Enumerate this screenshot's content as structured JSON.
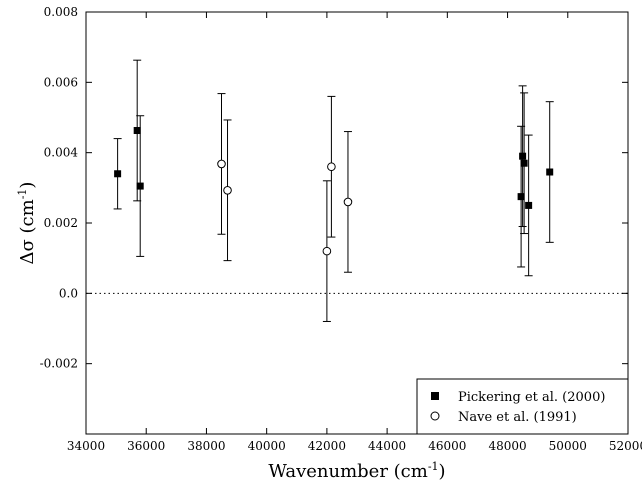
{
  "chart_data": {
    "type": "scatter",
    "xlabel": "Wavenumber (cm",
    "xlabel_sup": "-1",
    "xlabel_close": ")",
    "ylabel": "Δσ (cm",
    "ylabel_sup": "-1",
    "ylabel_close": ")",
    "xlim": [
      34000,
      52000
    ],
    "ylim": [
      -0.004,
      0.008
    ],
    "xticks": [
      34000,
      36000,
      38000,
      40000,
      42000,
      44000,
      46000,
      48000,
      50000,
      52000
    ],
    "xtick_labels": [
      "34000",
      "36000",
      "38000",
      "40000",
      "42000",
      "44000",
      "46000",
      "48000",
      "50000",
      "52000"
    ],
    "yticks": [
      -0.002,
      0.0,
      0.002,
      0.004,
      0.006,
      0.008
    ],
    "ytick_labels": [
      "-0.002",
      "0.0",
      "0.002",
      "0.004",
      "0.006",
      "0.008"
    ],
    "reference_line": {
      "y": 0.0,
      "style": "dotted"
    },
    "legend": {
      "placement": "bottom-right"
    },
    "series": [
      {
        "name": "Pickering et al. (2000)",
        "marker": "filled-square",
        "points": [
          {
            "x": 35050,
            "y": 0.0034,
            "err": 0.001
          },
          {
            "x": 35700,
            "y": 0.00463,
            "err": 0.002
          },
          {
            "x": 35800,
            "y": 0.00305,
            "err": 0.002
          },
          {
            "x": 48450,
            "y": 0.00275,
            "err": 0.002
          },
          {
            "x": 48500,
            "y": 0.0039,
            "err": 0.002
          },
          {
            "x": 48550,
            "y": 0.0037,
            "err": 0.002
          },
          {
            "x": 48700,
            "y": 0.0025,
            "err": 0.002
          },
          {
            "x": 49400,
            "y": 0.00345,
            "err": 0.002
          }
        ]
      },
      {
        "name": "Nave et al. (1991)",
        "marker": "open-circle",
        "points": [
          {
            "x": 38500,
            "y": 0.00368,
            "err": 0.002
          },
          {
            "x": 38700,
            "y": 0.00293,
            "err": 0.002
          },
          {
            "x": 42000,
            "y": 0.0012,
            "err": 0.002
          },
          {
            "x": 42150,
            "y": 0.0036,
            "err": 0.002
          },
          {
            "x": 42700,
            "y": 0.0026,
            "err": 0.002
          }
        ]
      }
    ]
  }
}
